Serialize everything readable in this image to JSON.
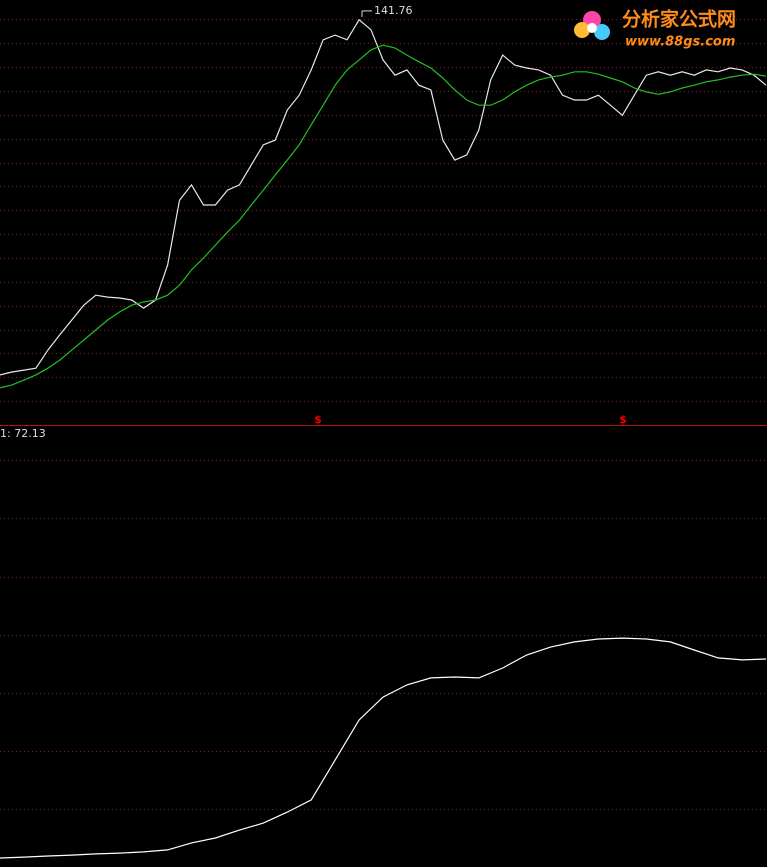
{
  "logo": {
    "title": "分析家公式网",
    "url": "www.88gs.com"
  },
  "signals": [
    "$",
    "$"
  ],
  "chart_data": [
    {
      "type": "line",
      "annotation": "141.76",
      "annotation_value": 141.76,
      "ylim": [
        55,
        143
      ],
      "yticks": [
        60,
        65,
        70,
        75,
        80,
        85,
        90,
        95,
        100,
        105,
        110,
        115,
        120,
        125,
        130,
        135,
        140
      ],
      "grid": true,
      "series": [
        {
          "name": null,
          "color": "#e8e8e8",
          "values": [
            65.5,
            66.1,
            66.5,
            66.9,
            70.7,
            73.9,
            77.0,
            80.1,
            82.2,
            81.8,
            81.6,
            81.2,
            79.5,
            81.2,
            88.5,
            102.1,
            105.3,
            101.1,
            101.1,
            104.2,
            105.3,
            109.5,
            113.7,
            114.7,
            121.0,
            124.1,
            129.4,
            135.7,
            136.7,
            135.7,
            139.9,
            137.8,
            131.5,
            128.3,
            129.4,
            126.2,
            125.2,
            114.7,
            110.5,
            111.6,
            116.8,
            127.3,
            132.5,
            130.4,
            129.8,
            129.4,
            128.3,
            124.1,
            123.1,
            123.1,
            124.1,
            122.0,
            119.9,
            124.1,
            128.3,
            129.0,
            128.3,
            129.0,
            128.3,
            129.4,
            129.0,
            129.8,
            129.4,
            128.3,
            126.2
          ]
        },
        {
          "name": null,
          "color": "#22c022",
          "values": [
            62.8,
            63.4,
            64.4,
            65.5,
            66.9,
            68.6,
            70.7,
            72.8,
            74.9,
            77.0,
            78.7,
            80.1,
            80.8,
            81.2,
            82.2,
            84.3,
            87.5,
            90.0,
            92.7,
            95.4,
            97.9,
            101.1,
            104.2,
            107.4,
            110.5,
            113.7,
            117.9,
            122.0,
            126.2,
            129.4,
            131.5,
            133.6,
            134.6,
            134.0,
            132.5,
            131.1,
            129.8,
            127.7,
            125.2,
            123.1,
            122.0,
            122.0,
            123.1,
            124.8,
            126.2,
            127.3,
            127.9,
            128.3,
            129.0,
            129.0,
            128.5,
            127.7,
            126.9,
            125.6,
            124.8,
            124.3,
            124.8,
            125.6,
            126.2,
            126.9,
            127.3,
            127.9,
            128.3,
            128.5,
            128.1
          ]
        }
      ]
    },
    {
      "type": "line",
      "label": "1: 72.13",
      "ylim": [
        0,
        147
      ],
      "yticks": [
        20,
        40,
        60,
        80,
        100,
        120,
        140
      ],
      "grid": true,
      "series": [
        {
          "name": null,
          "color": "#ffffff",
          "values": [
            3.1,
            3.4,
            3.8,
            4.1,
            4.5,
            4.8,
            5.2,
            5.9,
            8.3,
            10.0,
            12.7,
            15.1,
            18.9,
            23.1,
            36.8,
            50.6,
            58.5,
            62.7,
            65.1,
            65.4,
            65.1,
            68.5,
            73.0,
            75.7,
            77.5,
            78.5,
            78.8,
            78.5,
            77.5,
            74.7,
            72.0,
            71.3,
            71.6
          ]
        }
      ]
    }
  ]
}
